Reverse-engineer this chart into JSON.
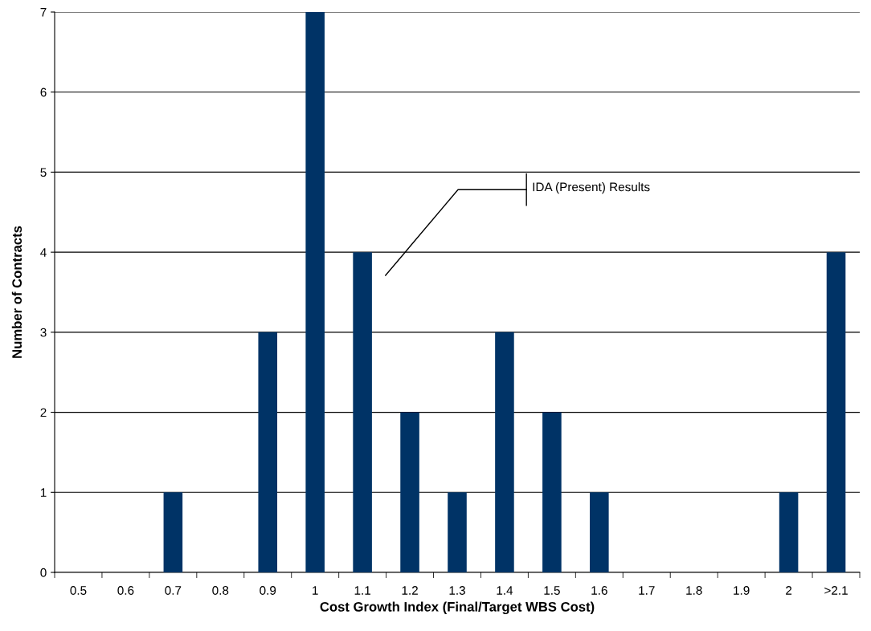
{
  "chart_data": {
    "type": "bar",
    "xlabel": "Cost Growth Index (Final/Target WBS Cost)",
    "ylabel": "Number of Contracts",
    "categories": [
      "0.5",
      "0.6",
      "0.7",
      "0.8",
      "0.9",
      "1",
      "1.1",
      "1.2",
      "1.3",
      "1.4",
      "1.5",
      "1.6",
      "1.7",
      "1.8",
      "1.9",
      "2",
      ">2.1"
    ],
    "values": [
      0,
      0,
      1,
      0,
      3,
      7,
      4,
      2,
      1,
      3,
      2,
      1,
      0,
      0,
      0,
      1,
      4
    ],
    "color": "#003366",
    "ylim": [
      0,
      7
    ],
    "yticks": [
      0,
      1,
      2,
      3,
      4,
      5,
      6,
      7
    ],
    "grid": "y",
    "annotations": [
      "IDA (Present) Results"
    ]
  }
}
